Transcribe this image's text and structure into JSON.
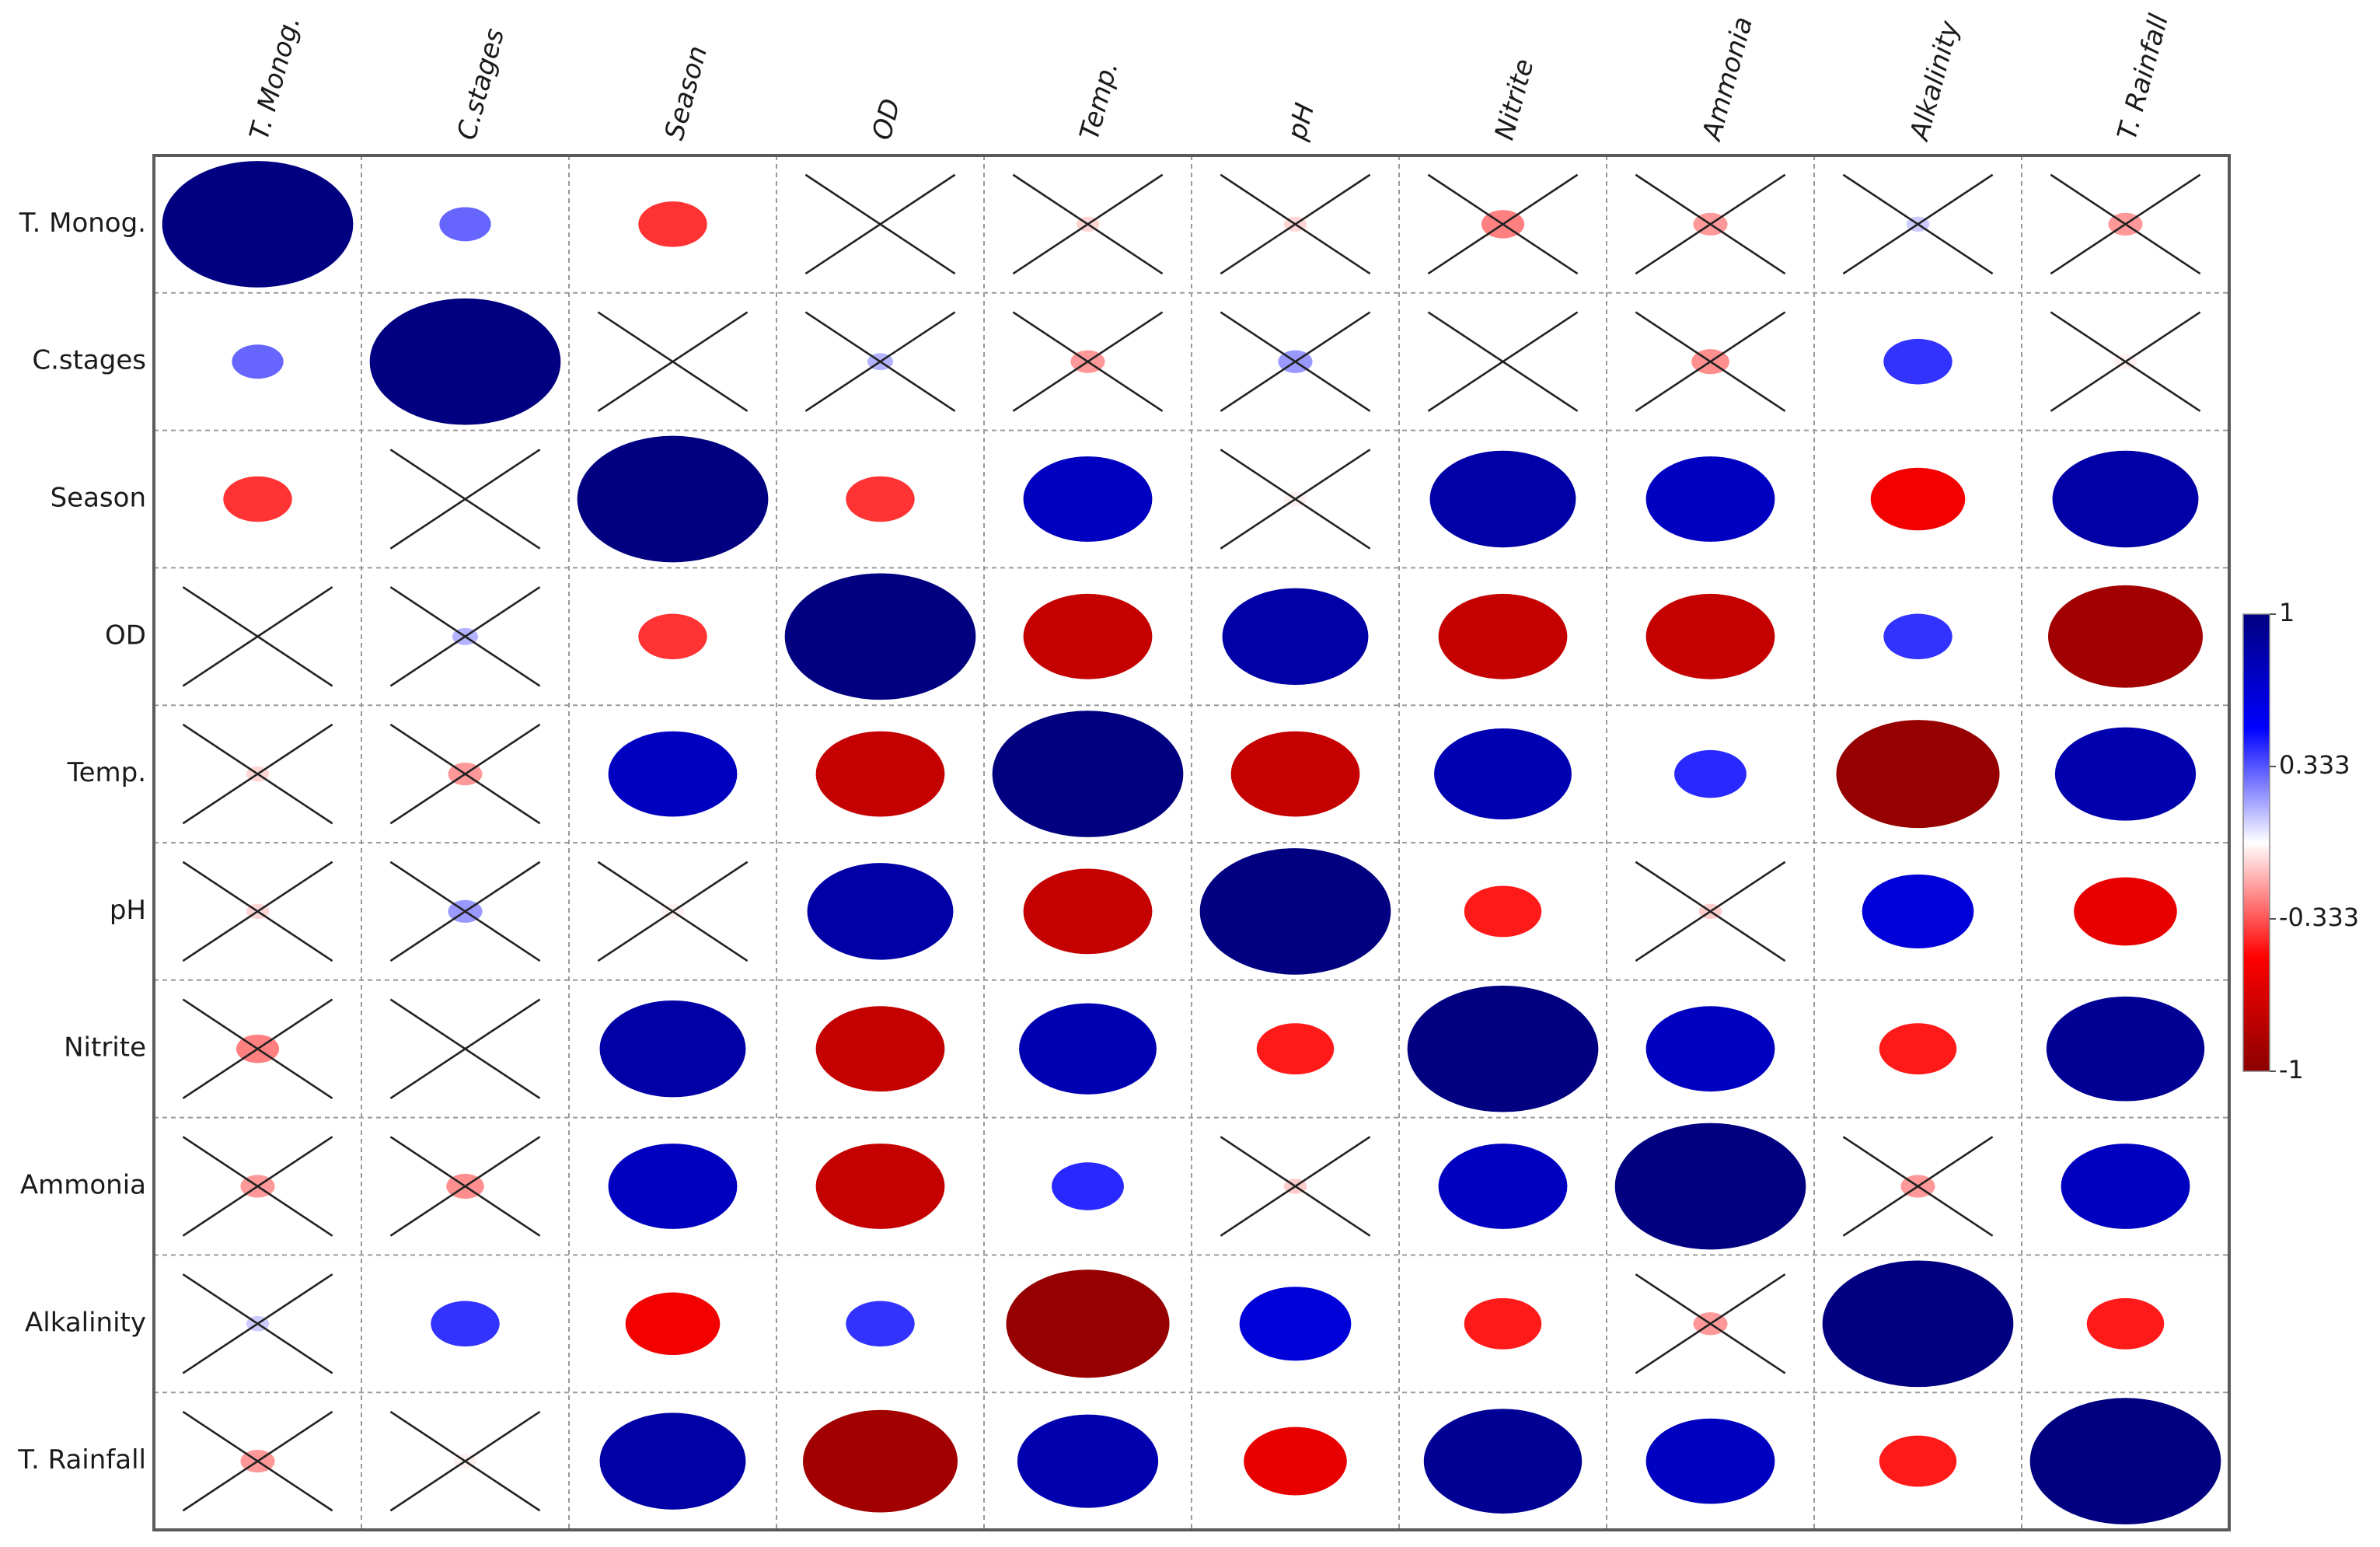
{
  "chart_data": {
    "type": "heatmap",
    "variables": [
      "T. Monog.",
      "C.stages",
      "Season",
      "OD",
      "Temp.",
      "pH",
      "Nitrite",
      "Ammonia",
      "Alkalinity",
      "T. Rainfall"
    ],
    "values": [
      [
        1.0,
        0.3,
        -0.4,
        0.0,
        -0.08,
        -0.08,
        -0.25,
        -0.2,
        0.1,
        -0.2
      ],
      [
        0.3,
        1.0,
        0.0,
        0.15,
        -0.2,
        0.2,
        0.0,
        -0.22,
        0.4,
        -0.03
      ],
      [
        -0.4,
        0.0,
        1.0,
        -0.4,
        0.75,
        -0.03,
        0.85,
        0.75,
        -0.55,
        0.85
      ],
      [
        0.0,
        0.15,
        -0.4,
        1.0,
        -0.75,
        0.85,
        -0.75,
        -0.75,
        0.4,
        -0.9
      ],
      [
        -0.08,
        -0.2,
        0.75,
        -0.75,
        1.0,
        -0.75,
        0.8,
        0.42,
        -0.95,
        0.82
      ],
      [
        -0.08,
        0.2,
        -0.03,
        0.85,
        -0.75,
        1.0,
        -0.45,
        -0.1,
        0.65,
        -0.6
      ],
      [
        -0.25,
        0.0,
        0.85,
        -0.75,
        0.8,
        -0.45,
        1.0,
        0.75,
        -0.45,
        0.92
      ],
      [
        -0.2,
        -0.22,
        0.75,
        -0.75,
        0.42,
        -0.1,
        0.75,
        1.0,
        -0.2,
        0.75
      ],
      [
        0.1,
        0.4,
        -0.55,
        0.4,
        -0.95,
        0.65,
        -0.45,
        -0.2,
        1.0,
        -0.45
      ],
      [
        -0.2,
        -0.03,
        0.85,
        -0.9,
        0.82,
        -0.6,
        0.92,
        0.75,
        -0.45,
        1.0
      ]
    ],
    "crossed": [
      [
        false,
        false,
        false,
        true,
        true,
        true,
        true,
        true,
        true,
        true
      ],
      [
        false,
        false,
        true,
        true,
        true,
        true,
        true,
        true,
        false,
        true
      ],
      [
        false,
        true,
        false,
        false,
        false,
        true,
        false,
        false,
        false,
        false
      ],
      [
        true,
        true,
        false,
        false,
        false,
        false,
        false,
        false,
        false,
        false
      ],
      [
        true,
        true,
        false,
        false,
        false,
        false,
        false,
        false,
        false,
        false
      ],
      [
        true,
        true,
        true,
        false,
        false,
        false,
        false,
        true,
        false,
        false
      ],
      [
        true,
        true,
        false,
        false,
        false,
        false,
        false,
        false,
        false,
        false
      ],
      [
        true,
        true,
        false,
        false,
        false,
        true,
        false,
        false,
        true,
        false
      ],
      [
        true,
        false,
        false,
        false,
        false,
        false,
        false,
        true,
        false,
        false
      ],
      [
        true,
        true,
        false,
        false,
        false,
        false,
        false,
        false,
        false,
        false
      ]
    ],
    "colorbar": {
      "min": -1,
      "max": 1,
      "tick_labels": [
        "1",
        "0.333",
        "-0.333",
        "-1"
      ],
      "colors": {
        "pos_dark": "#000080",
        "pos_mid": "#0000ff",
        "zero": "#ffffff",
        "neg_mid": "#ff0000",
        "neg_dark": "#8b0000"
      }
    },
    "grid": "dashed"
  }
}
